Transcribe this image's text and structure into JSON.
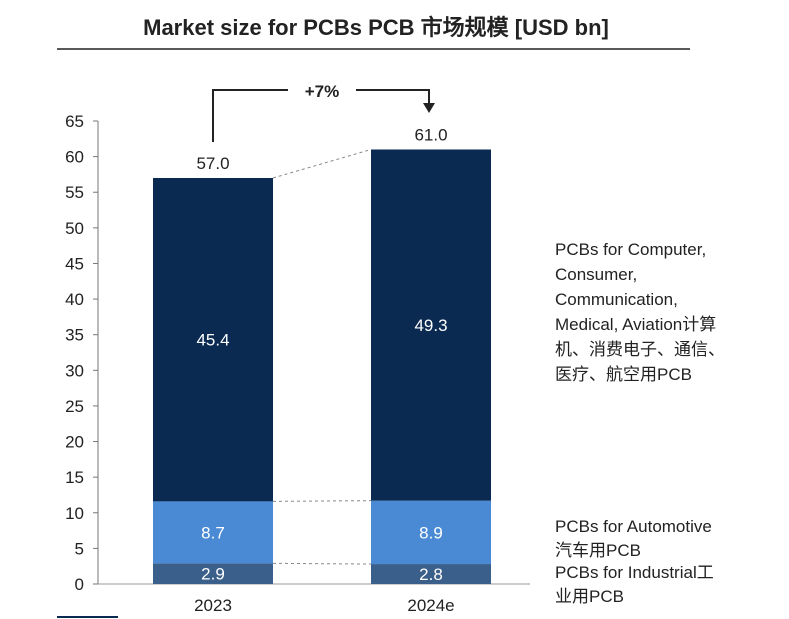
{
  "chart_data": {
    "type": "bar",
    "stacked": true,
    "title": "Market size for PCBs PCB 市场规模 [USD bn]",
    "categories": [
      "2023",
      "2024e"
    ],
    "ylim": [
      0,
      65
    ],
    "yticks": [
      "0",
      "5",
      "10",
      "15",
      "20",
      "25",
      "30",
      "35",
      "40",
      "45",
      "50",
      "55",
      "60",
      "65"
    ],
    "series": [
      {
        "name": "PCBs for Industrial工业用PCB",
        "values": [
          2.9,
          2.8
        ],
        "labels": [
          "2.9",
          "2.8"
        ],
        "color": "#3a5f8a"
      },
      {
        "name": "PCBs for Automotive 汽车用PCB",
        "values": [
          8.7,
          8.9
        ],
        "labels": [
          "8.7",
          "8.9"
        ],
        "color": "#4a8ad4"
      },
      {
        "name": "PCBs for Computer, Consumer, Communication, Medical, Aviation计算机、消费电子、通信、医疗、航空用PCB",
        "values": [
          45.4,
          49.3
        ],
        "labels": [
          "45.4",
          "49.3"
        ],
        "color": "#0b2a52"
      }
    ],
    "totals": [
      "57.0",
      "61.0"
    ],
    "growth": "+7%",
    "legend_lines": {
      "top": [
        "PCBs for Computer,",
        "Consumer,",
        "Communication,",
        "Medical, Aviation计算",
        "机、消费电子、通信、",
        "医疗、航空用PCB"
      ],
      "middle": [
        "PCBs for Automotive",
        "汽车用PCB"
      ],
      "bottom": [
        "PCBs for Industrial工",
        "业用PCB"
      ]
    }
  }
}
